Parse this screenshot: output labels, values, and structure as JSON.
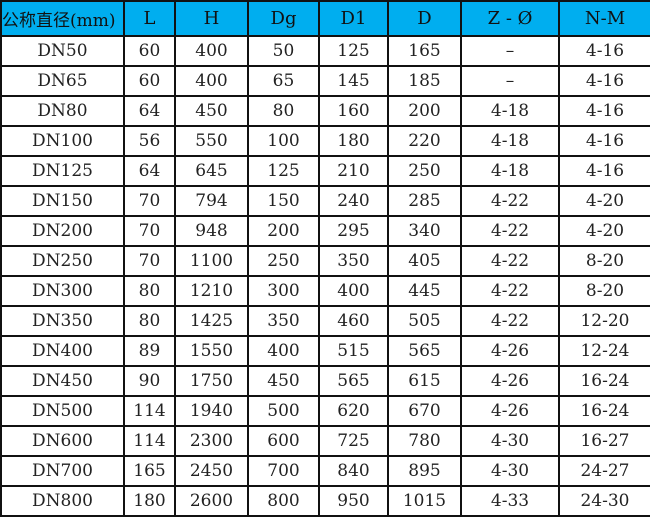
{
  "header_color": "#00AEEF",
  "headers": [
    "公称直径(mm)",
    "L",
    "H",
    "Dg",
    "D1",
    "D",
    "Z - Ø",
    "N-M"
  ],
  "rows": [
    [
      "DN50",
      "60",
      "400",
      "50",
      "125",
      "165",
      "–",
      "4-16"
    ],
    [
      "DN65",
      "60",
      "400",
      "65",
      "145",
      "185",
      "–",
      "4-16"
    ],
    [
      "DN80",
      "64",
      "450",
      "80",
      "160",
      "200",
      "4-18",
      "4-16"
    ],
    [
      "DN100",
      "56",
      "550",
      "100",
      "180",
      "220",
      "4-18",
      "4-16"
    ],
    [
      "DN125",
      "64",
      "645",
      "125",
      "210",
      "250",
      "4-18",
      "4-16"
    ],
    [
      "DN150",
      "70",
      "794",
      "150",
      "240",
      "285",
      "4-22",
      "4-20"
    ],
    [
      "DN200",
      "70",
      "948",
      "200",
      "295",
      "340",
      "4-22",
      "4-20"
    ],
    [
      "DN250",
      "70",
      "1100",
      "250",
      "350",
      "405",
      "4-22",
      "8-20"
    ],
    [
      "DN300",
      "80",
      "1210",
      "300",
      "400",
      "445",
      "4-22",
      "8-20"
    ],
    [
      "DN350",
      "80",
      "1425",
      "350",
      "460",
      "505",
      "4-22",
      "12-20"
    ],
    [
      "DN400",
      "89",
      "1550",
      "400",
      "515",
      "565",
      "4-26",
      "12-24"
    ],
    [
      "DN450",
      "90",
      "1750",
      "450",
      "565",
      "615",
      "4-26",
      "16-24"
    ],
    [
      "DN500",
      "114",
      "1940",
      "500",
      "620",
      "670",
      "4-26",
      "16-24"
    ],
    [
      "DN600",
      "114",
      "2300",
      "600",
      "725",
      "780",
      "4-30",
      "16-27"
    ],
    [
      "DN700",
      "165",
      "2450",
      "700",
      "840",
      "895",
      "4-30",
      "24-27"
    ],
    [
      "DN800",
      "180",
      "2600",
      "800",
      "950",
      "1015",
      "4-33",
      "24-30"
    ]
  ]
}
